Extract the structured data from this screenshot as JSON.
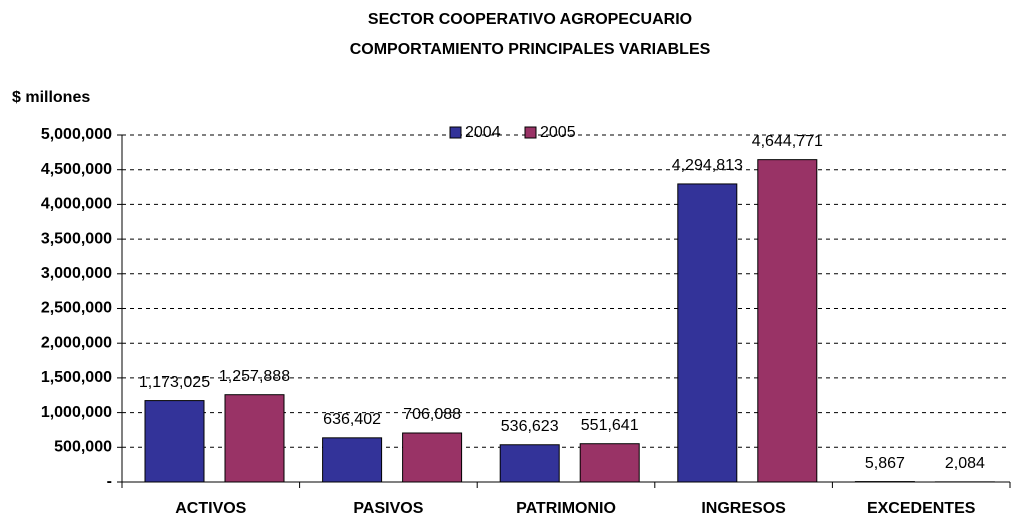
{
  "chart_data": {
    "type": "bar",
    "title": "SECTOR COOPERATIVO AGROPECUARIO",
    "subtitle": "COMPORTAMIENTO PRINCIPALES VARIABLES",
    "y_label": "$ millones",
    "categories": [
      "ACTIVOS",
      "PASIVOS",
      "PATRIMONIO",
      "INGRESOS",
      "EXCEDENTES"
    ],
    "series": [
      {
        "name": "2004",
        "color": "#333399",
        "values": [
          1173025,
          636402,
          536623,
          4294813,
          5867
        ],
        "value_labels": [
          "1,173,025",
          "636,402",
          "536,623",
          "4,294,813",
          "5,867"
        ]
      },
      {
        "name": "2005",
        "color": "#993366",
        "values": [
          1257888,
          706088,
          551641,
          4644771,
          2084
        ],
        "value_labels": [
          "1,257,888",
          "706,088",
          "551,641",
          "4,644,771",
          "2,084"
        ]
      }
    ],
    "ylim": [
      0,
      5000000
    ],
    "yticks": [
      {
        "value": 0,
        "label": "-"
      },
      {
        "value": 500000,
        "label": "500,000"
      },
      {
        "value": 1000000,
        "label": "1,000,000"
      },
      {
        "value": 1500000,
        "label": "1,500,000"
      },
      {
        "value": 2000000,
        "label": "2,000,000"
      },
      {
        "value": 2500000,
        "label": "2,500,000"
      },
      {
        "value": 3000000,
        "label": "3,000,000"
      },
      {
        "value": 3500000,
        "label": "3,500,000"
      },
      {
        "value": 4000000,
        "label": "4,000,000"
      },
      {
        "value": 4500000,
        "label": "4,500,000"
      },
      {
        "value": 5000000,
        "label": "5,000,000"
      }
    ],
    "grid": true,
    "legend": "top"
  }
}
